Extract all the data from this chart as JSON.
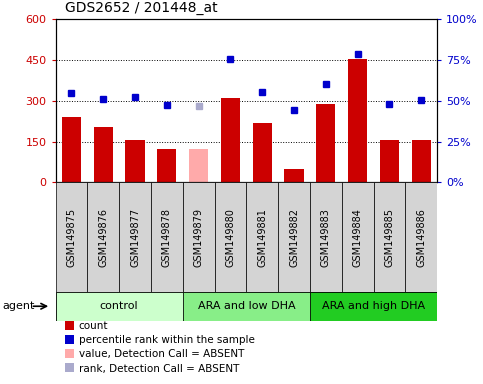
{
  "title": "GDS2652 / 201448_at",
  "samples": [
    "GSM149875",
    "GSM149876",
    "GSM149877",
    "GSM149878",
    "GSM149879",
    "GSM149880",
    "GSM149881",
    "GSM149882",
    "GSM149883",
    "GSM149884",
    "GSM149885",
    "GSM149886"
  ],
  "bar_values": [
    240,
    203,
    155,
    122,
    122,
    310,
    218,
    50,
    290,
    455,
    155,
    155
  ],
  "bar_absent": [
    false,
    false,
    false,
    false,
    true,
    false,
    false,
    false,
    false,
    false,
    false,
    false
  ],
  "percentile_values": [
    330,
    308,
    315,
    285,
    280,
    455,
    332,
    265,
    360,
    472,
    288,
    302
  ],
  "percentile_absent": [
    false,
    false,
    false,
    false,
    true,
    false,
    false,
    false,
    false,
    false,
    false,
    false
  ],
  "bar_color": "#cc0000",
  "bar_absent_color": "#ffaaaa",
  "dot_color": "#0000cc",
  "dot_absent_color": "#aaaacc",
  "ylim": [
    0,
    600
  ],
  "yticks": [
    0,
    150,
    300,
    450,
    600
  ],
  "ytick_labels_left": [
    "0",
    "150",
    "300",
    "450",
    "600"
  ],
  "ytick_labels_right": [
    "0%",
    "25%",
    "50%",
    "75%",
    "100%"
  ],
  "grid_yticks": [
    150,
    300,
    450
  ],
  "groups": [
    {
      "label": "control",
      "start": 0,
      "end": 3,
      "color": "#ccffcc"
    },
    {
      "label": "ARA and low DHA",
      "start": 4,
      "end": 7,
      "color": "#88ee88"
    },
    {
      "label": "ARA and high DHA",
      "start": 8,
      "end": 11,
      "color": "#22cc22"
    }
  ],
  "legend_items": [
    {
      "label": "count",
      "color": "#cc0000"
    },
    {
      "label": "percentile rank within the sample",
      "color": "#0000cc"
    },
    {
      "label": "value, Detection Call = ABSENT",
      "color": "#ffaaaa"
    },
    {
      "label": "rank, Detection Call = ABSENT",
      "color": "#aaaacc"
    }
  ],
  "agent_label": "agent"
}
